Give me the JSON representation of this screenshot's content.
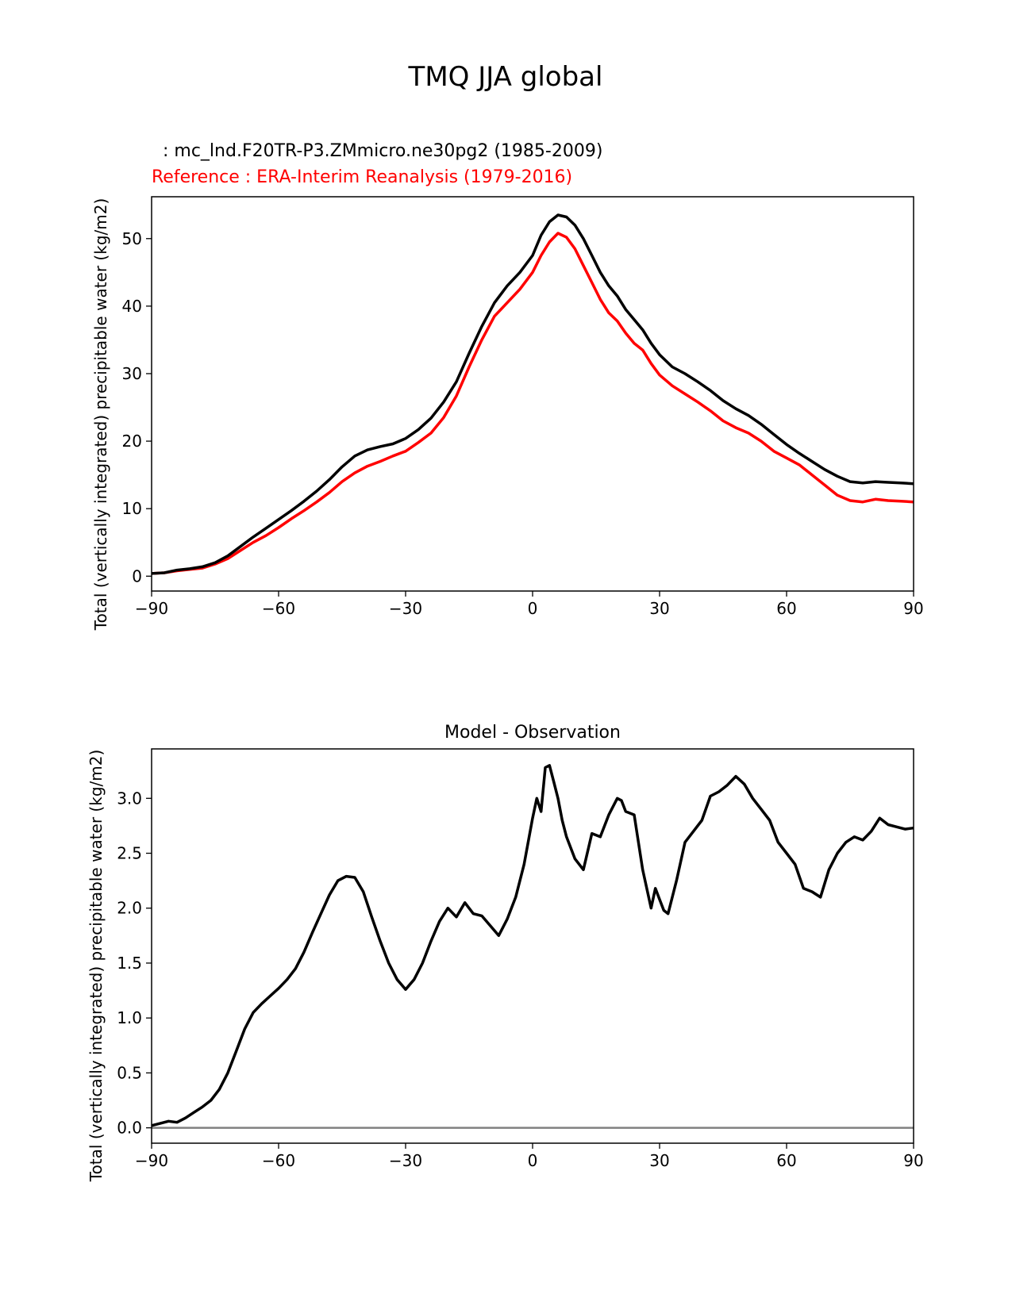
{
  "figure": {
    "title": "TMQ JJA global"
  },
  "chart_data": [
    {
      "type": "line",
      "test_label": ": mc_lnd.F20TR-P3.ZMmicro.ne30pg2 (1985-2009)",
      "reference_label": "Reference : ERA-Interim Reanalysis (1979-2016)",
      "xlabel": "",
      "ylabel": "Total (vertically integrated) precipitable water (kg/m2)",
      "xlim": [
        -90,
        90
      ],
      "ylim": [
        -2.2,
        56.2
      ],
      "xticks": [
        -90,
        -60,
        -30,
        0,
        30,
        60,
        90
      ],
      "xticklabels": [
        "−90",
        "−60",
        "−30",
        "0",
        "30",
        "60",
        "90"
      ],
      "yticks": [
        0,
        10,
        20,
        30,
        40,
        50
      ],
      "yticklabels": [
        "0",
        "10",
        "20",
        "30",
        "40",
        "50"
      ],
      "series": [
        {
          "name": "Reference",
          "color": "#ff0000",
          "x": [
            -90,
            -87,
            -84,
            -81,
            -78,
            -75,
            -72,
            -69,
            -66,
            -63,
            -60,
            -57,
            -54,
            -51,
            -48,
            -45,
            -42,
            -39,
            -36,
            -33,
            -30,
            -27,
            -24,
            -21,
            -18,
            -15,
            -12,
            -9,
            -6,
            -3,
            0,
            2,
            4,
            6,
            8,
            10,
            12,
            14,
            16,
            18,
            20,
            22,
            24,
            26,
            28,
            30,
            33,
            36,
            39,
            42,
            45,
            48,
            51,
            54,
            57,
            60,
            63,
            66,
            69,
            72,
            75,
            78,
            81,
            84,
            87,
            90
          ],
          "values": [
            0.4,
            0.5,
            0.8,
            1.0,
            1.2,
            1.8,
            2.6,
            3.8,
            5.0,
            6.0,
            7.2,
            8.5,
            9.7,
            11.0,
            12.4,
            14.0,
            15.3,
            16.3,
            17.0,
            17.8,
            18.5,
            19.8,
            21.2,
            23.5,
            26.7,
            31.0,
            35.0,
            38.5,
            40.5,
            42.5,
            45.0,
            47.5,
            49.5,
            50.8,
            50.2,
            48.5,
            46.0,
            43.5,
            41.0,
            39.0,
            37.8,
            36.0,
            34.5,
            33.5,
            31.5,
            29.8,
            28.2,
            27.0,
            25.8,
            24.5,
            23.0,
            22.0,
            21.2,
            20.0,
            18.5,
            17.5,
            16.5,
            15.0,
            13.5,
            12.0,
            11.2,
            11.0,
            11.4,
            11.2,
            11.1,
            11.0
          ]
        },
        {
          "name": "Model",
          "color": "#000000",
          "x": [
            -90,
            -87,
            -84,
            -81,
            -78,
            -75,
            -72,
            -69,
            -66,
            -63,
            -60,
            -57,
            -54,
            -51,
            -48,
            -45,
            -42,
            -39,
            -36,
            -33,
            -30,
            -27,
            -24,
            -21,
            -18,
            -15,
            -12,
            -9,
            -6,
            -3,
            0,
            2,
            4,
            6,
            8,
            10,
            12,
            14,
            16,
            18,
            20,
            22,
            24,
            26,
            28,
            30,
            33,
            36,
            39,
            42,
            45,
            48,
            51,
            54,
            57,
            60,
            63,
            66,
            69,
            72,
            75,
            78,
            81,
            84,
            87,
            90
          ],
          "values": [
            0.4,
            0.5,
            0.9,
            1.1,
            1.4,
            2.0,
            3.0,
            4.4,
            5.8,
            7.1,
            8.4,
            9.7,
            11.1,
            12.6,
            14.3,
            16.2,
            17.8,
            18.7,
            19.2,
            19.6,
            20.4,
            21.7,
            23.4,
            25.8,
            28.8,
            33.0,
            37.0,
            40.5,
            43.0,
            45.0,
            47.5,
            50.5,
            52.5,
            53.5,
            53.2,
            52.0,
            50.0,
            47.5,
            45.0,
            43.0,
            41.5,
            39.5,
            38.0,
            36.5,
            34.5,
            32.8,
            31.0,
            30.0,
            28.8,
            27.5,
            26.0,
            24.8,
            23.8,
            22.5,
            21.0,
            19.5,
            18.2,
            17.0,
            15.8,
            14.8,
            14.0,
            13.8,
            14.0,
            13.9,
            13.8,
            13.7
          ]
        }
      ]
    },
    {
      "type": "line",
      "title": "Model - Observation",
      "xlabel": "",
      "ylabel": "Total (vertically integrated) precipitable water (kg/m2)",
      "xlim": [
        -90,
        90
      ],
      "ylim": [
        -0.14,
        3.45
      ],
      "xticks": [
        -90,
        -60,
        -30,
        0,
        30,
        60,
        90
      ],
      "xticklabels": [
        "−90",
        "−60",
        "−30",
        "0",
        "30",
        "60",
        "90"
      ],
      "yticks": [
        0.0,
        0.5,
        1.0,
        1.5,
        2.0,
        2.5,
        3.0
      ],
      "yticklabels": [
        "0.0",
        "0.5",
        "1.0",
        "1.5",
        "2.0",
        "2.5",
        "3.0"
      ],
      "zero_line_color": "#808080",
      "series": [
        {
          "name": "Model - Observation",
          "color": "#000000",
          "x": [
            -90,
            -88,
            -86,
            -84,
            -82,
            -80,
            -78,
            -76,
            -74,
            -72,
            -70,
            -68,
            -66,
            -64,
            -62,
            -60,
            -58,
            -56,
            -54,
            -52,
            -50,
            -48,
            -46,
            -44,
            -42,
            -40,
            -38,
            -36,
            -34,
            -32,
            -30,
            -28,
            -26,
            -24,
            -22,
            -20,
            -18,
            -16,
            -14,
            -12,
            -10,
            -8,
            -6,
            -4,
            -2,
            0,
            1,
            2,
            3,
            4,
            5,
            6,
            7,
            8,
            10,
            12,
            14,
            16,
            18,
            20,
            21,
            22,
            24,
            26,
            28,
            29,
            30,
            31,
            32,
            34,
            36,
            38,
            40,
            42,
            44,
            46,
            48,
            50,
            52,
            54,
            56,
            58,
            60,
            62,
            64,
            66,
            68,
            70,
            72,
            74,
            76,
            78,
            80,
            82,
            84,
            86,
            88,
            90
          ],
          "values": [
            0.02,
            0.04,
            0.06,
            0.05,
            0.09,
            0.14,
            0.19,
            0.25,
            0.35,
            0.5,
            0.7,
            0.9,
            1.05,
            1.13,
            1.2,
            1.27,
            1.35,
            1.45,
            1.6,
            1.78,
            1.95,
            2.12,
            2.25,
            2.29,
            2.28,
            2.15,
            1.92,
            1.7,
            1.5,
            1.35,
            1.26,
            1.35,
            1.5,
            1.7,
            1.88,
            2.0,
            1.92,
            2.05,
            1.95,
            1.93,
            1.84,
            1.75,
            1.9,
            2.1,
            2.4,
            2.82,
            3.0,
            2.88,
            3.28,
            3.3,
            3.15,
            3.0,
            2.8,
            2.65,
            2.45,
            2.35,
            2.68,
            2.65,
            2.85,
            3.0,
            2.98,
            2.88,
            2.85,
            2.35,
            2.0,
            2.18,
            2.08,
            1.98,
            1.95,
            2.25,
            2.6,
            2.7,
            2.8,
            3.02,
            3.06,
            3.12,
            3.2,
            3.13,
            3.0,
            2.9,
            2.8,
            2.6,
            2.5,
            2.4,
            2.18,
            2.15,
            2.1,
            2.35,
            2.5,
            2.6,
            2.65,
            2.62,
            2.7,
            2.82,
            2.76,
            2.74,
            2.72,
            2.73
          ]
        }
      ]
    }
  ]
}
